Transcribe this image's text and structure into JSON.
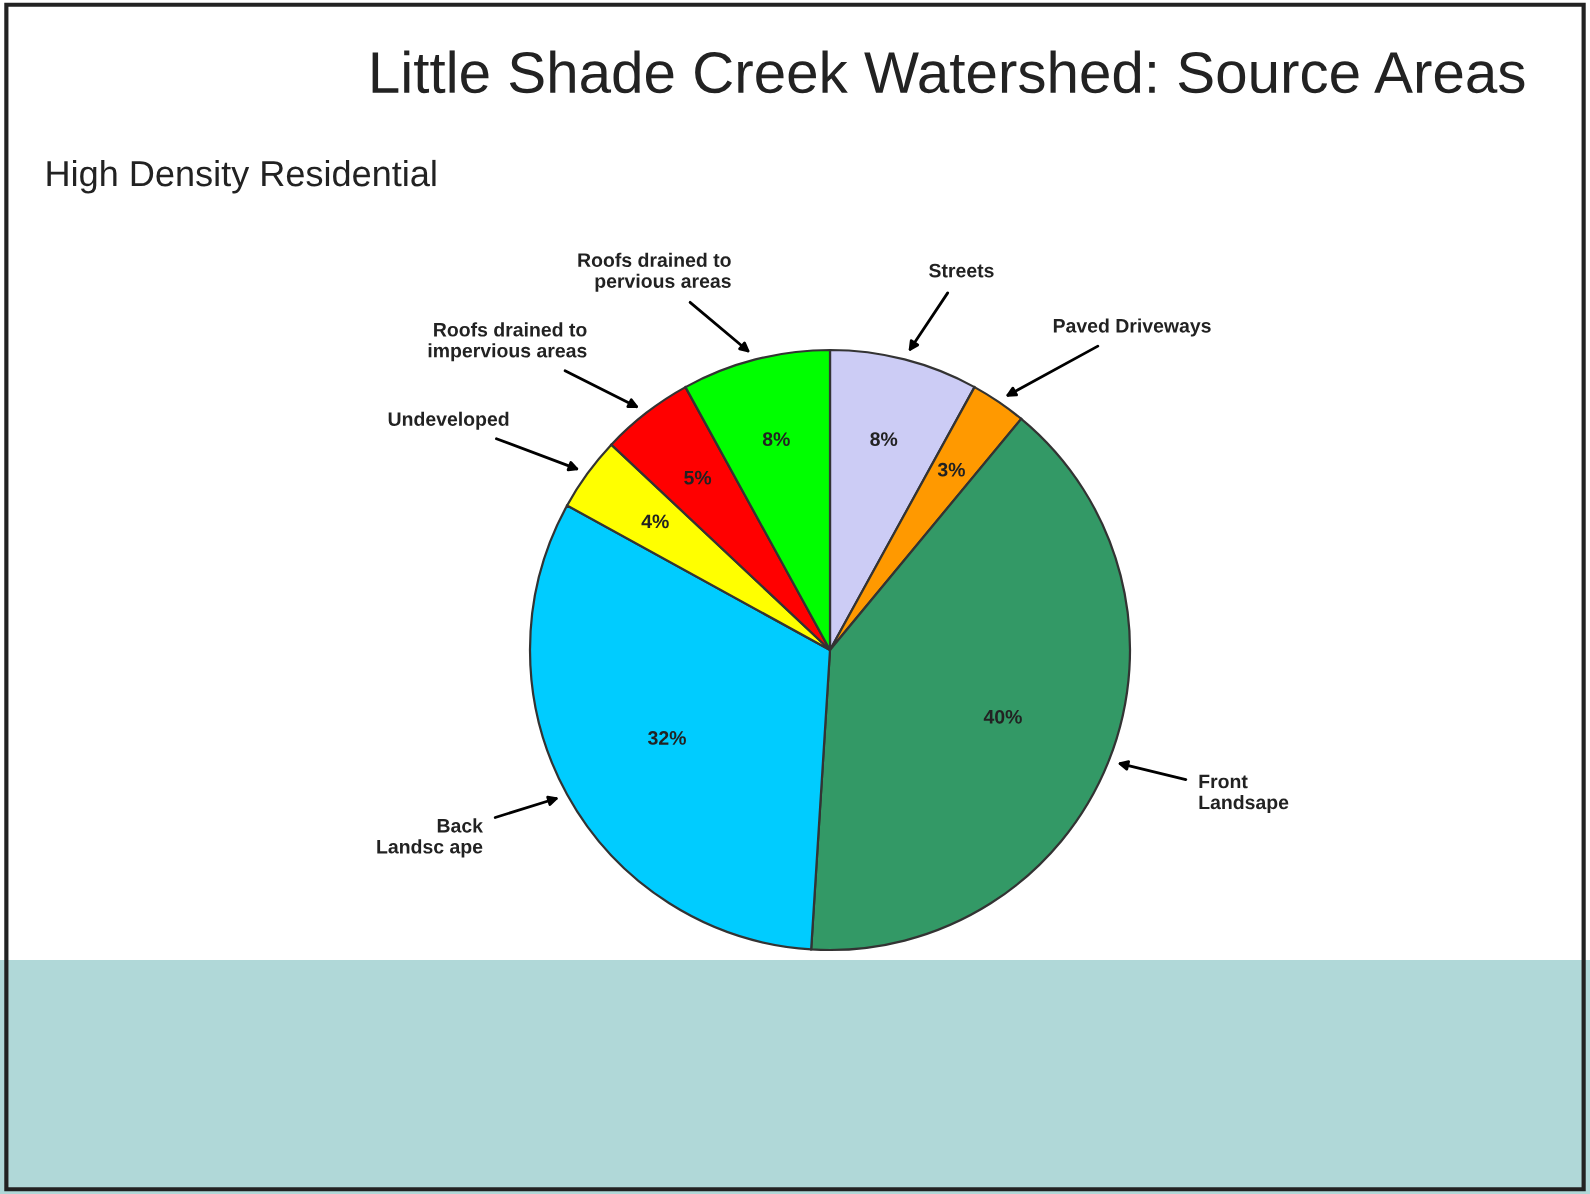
{
  "chart_data": {
    "type": "pie",
    "title": "Little Shade Creek Watershed: Source Areas",
    "subtitle": "High Density Residential",
    "categories": [
      "Streets",
      "Paved Driveways",
      "Front\nLandsape",
      "Back\nLandsc ape",
      "Undeveloped",
      "Roofs drained to\nimpervious areas",
      "Roofs drained to\npervious areas"
    ],
    "values": [
      8,
      3,
      40,
      32,
      4,
      5,
      8
    ],
    "colors": [
      "#ccccf5",
      "#ff9900",
      "#339966",
      "#00ccff",
      "#ffff00",
      "#ff0000",
      "#00ff00"
    ],
    "value_labels": [
      "8%",
      "3%",
      "40%",
      "32%",
      "4%",
      "5%",
      "8%"
    ]
  }
}
